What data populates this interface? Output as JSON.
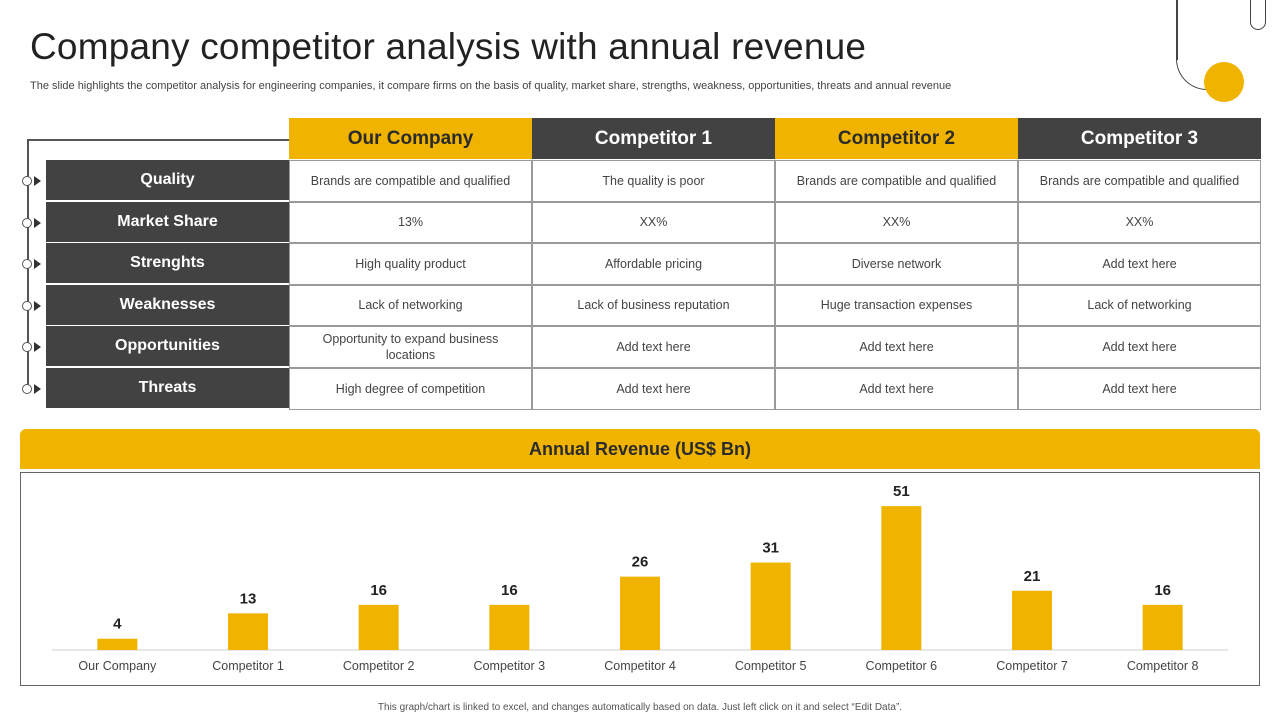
{
  "title": "Company competitor analysis with annual revenue",
  "subtitle": "The slide highlights the competitor analysis for engineering companies, it compare firms on the basis of quality, market share, strengths, weakness, opportunities, threats and annual revenue",
  "table": {
    "columns": [
      "Our Company",
      "Competitor 1",
      "Competitor 2",
      "Competitor 3"
    ],
    "rows": [
      {
        "label": "Quality",
        "cells": [
          "Brands are compatible and qualified",
          "The quality is poor",
          "Brands are compatible and qualified",
          "Brands are compatible and qualified"
        ]
      },
      {
        "label": "Market Share",
        "cells": [
          "13%",
          "XX%",
          "XX%",
          "XX%"
        ]
      },
      {
        "label": "Strenghts",
        "cells": [
          "High quality product",
          "Affordable  pricing",
          "Diverse  network",
          "Add text here"
        ]
      },
      {
        "label": "Weaknesses",
        "cells": [
          "Lack of networking",
          "Lack of business reputation",
          "Huge transaction expenses",
          "Lack of networking"
        ]
      },
      {
        "label": "Opportunities",
        "cells": [
          "Opportunity to expand business locations",
          "Add text here",
          "Add text here",
          "Add text here"
        ]
      },
      {
        "label": "Threats",
        "cells": [
          "High degree  of competition",
          "Add text here",
          "Add text here",
          "Add text here"
        ]
      }
    ]
  },
  "chart_data": {
    "type": "bar",
    "title": "Annual Revenue (US$ Bn)",
    "categories": [
      "Our Company",
      "Competitor 1",
      "Competitor 2",
      "Competitor 3",
      "Competitor 4",
      "Competitor 5",
      "Competitor 6",
      "Competitor 7",
      "Competitor 8"
    ],
    "values": [
      4,
      13,
      16,
      16,
      26,
      31,
      51,
      21,
      16
    ],
    "ylim": [
      0,
      56
    ],
    "grid": false,
    "legend": "none",
    "bar_color": "#f0b400"
  },
  "colors": {
    "accent": "#f0b400",
    "dark": "#424242"
  },
  "footer": "This graph/chart is linked to excel, and changes automatically based on data. Just left click on it and select “Edit Data”."
}
